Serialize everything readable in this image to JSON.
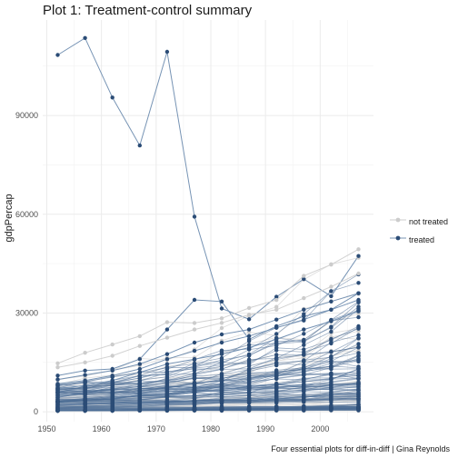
{
  "chart_data": {
    "type": "line",
    "title": "Plot 1: Treatment-control summary",
    "xlabel": "",
    "ylabel": "gdpPercap",
    "caption": "Four essential plots for diff-in-diff | Gina Reynolds",
    "x_ticks": [
      1950,
      1960,
      1970,
      1980,
      1990,
      2000
    ],
    "y_ticks": [
      0,
      30000,
      60000,
      90000
    ],
    "x_tick_labels": [
      "1950",
      "1960",
      "1970",
      "1980",
      "1990",
      "2000"
    ],
    "y_tick_labels": [
      "0",
      "30000",
      "60000",
      "90000"
    ],
    "xlim": [
      1949.25,
      2009.75
    ],
    "ylim": [
      -3000,
      119000
    ],
    "grid": true,
    "legend_position": "right",
    "series": [
      {
        "name": "not treated",
        "color": "#cccccc"
      },
      {
        "name": "treated",
        "color": "#2b4c76"
      }
    ],
    "years": [
      1952,
      1957,
      1962,
      1967,
      1972,
      1977,
      1982,
      1987,
      1992,
      1997,
      2002,
      2007
    ],
    "highlighted_lines": [
      {
        "group": "treated",
        "values": [
          108382,
          113523,
          95458,
          80894,
          109347,
          59265,
          31354,
          28118,
          34932,
          40301,
          35110,
          47307
        ]
      },
      {
        "group": "treated",
        "values": [
          11000,
          12500,
          13000,
          16000,
          25000,
          34000,
          33500,
          22000,
          26000,
          29000,
          31000,
          36000
        ]
      },
      {
        "group": "treated",
        "values": [
          9800,
          11200,
          12500,
          14500,
          17500,
          21000,
          23500,
          25000,
          28000,
          31000,
          33500,
          36000
        ]
      },
      {
        "group": "not treated",
        "values": [
          14734,
          17909,
          20431,
          22966,
          27195,
          26982,
          28397,
          31541,
          33966,
          41283,
          44684,
          49357
        ]
      },
      {
        "group": "not treated",
        "values": [
          13500,
          15000,
          17000,
          20000,
          22500,
          25000,
          27000,
          29500,
          31000,
          34500,
          38000,
          42000
        ]
      },
      {
        "group": "treated",
        "values": [
          8500,
          9500,
          11000,
          13000,
          16000,
          18500,
          21000,
          23000,
          25500,
          28000,
          31000,
          34000
        ]
      },
      {
        "group": "treated",
        "values": [
          7000,
          8000,
          9500,
          12000,
          14500,
          16000,
          17500,
          19500,
          22000,
          25000,
          27500,
          30500
        ]
      }
    ]
  }
}
